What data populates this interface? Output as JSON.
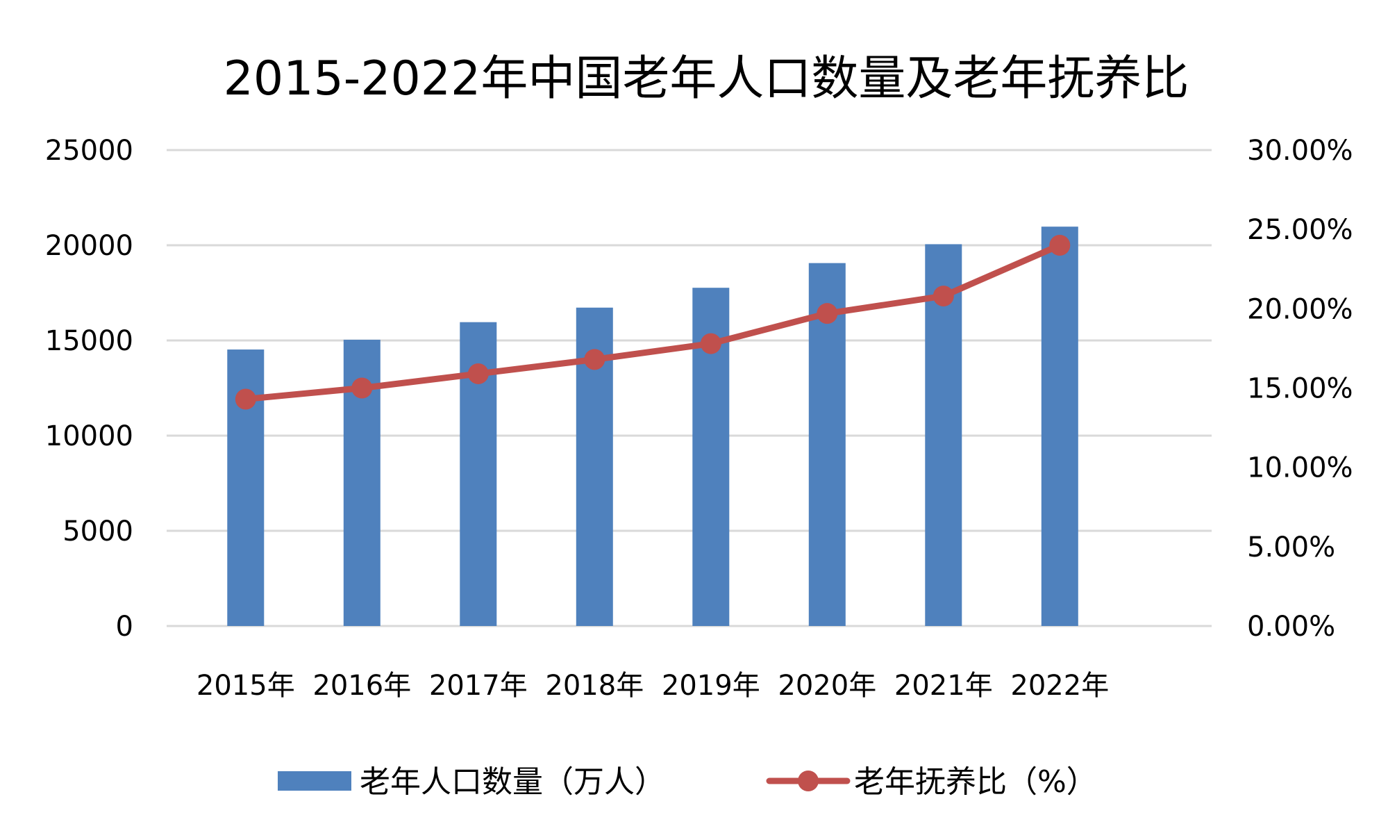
{
  "chart_data": {
    "type": "bar+line",
    "title": "2015-2022年中国老年人口数量及老年抚养比",
    "categories": [
      "2015年",
      "2016年",
      "2017年",
      "2018年",
      "2019年",
      "2020年",
      "2021年",
      "2022年"
    ],
    "series": [
      {
        "name": "老年人口数量（万人）",
        "type": "bar",
        "axis": "left",
        "color": "#4f81bd",
        "values": [
          14524,
          15037,
          15961,
          16724,
          17767,
          19064,
          20056,
          20978
        ]
      },
      {
        "name": "老年抚养比（%）",
        "type": "line",
        "axis": "right",
        "color": "#c0504d",
        "values": [
          14.3,
          15.0,
          15.9,
          16.8,
          17.8,
          19.7,
          20.8,
          24.0
        ]
      }
    ],
    "y_left": {
      "ylim": [
        0,
        25000
      ],
      "ticks": [
        "0",
        "5000",
        "10000",
        "15000",
        "20000",
        "25000"
      ]
    },
    "y_right": {
      "ylim": [
        0,
        30
      ],
      "ticks": [
        "0.00%",
        "5.00%",
        "10.00%",
        "15.00%",
        "20.00%",
        "25.00%",
        "30.00%"
      ]
    },
    "gridline_color": "#d9d9d9",
    "legend_position": "bottom"
  }
}
